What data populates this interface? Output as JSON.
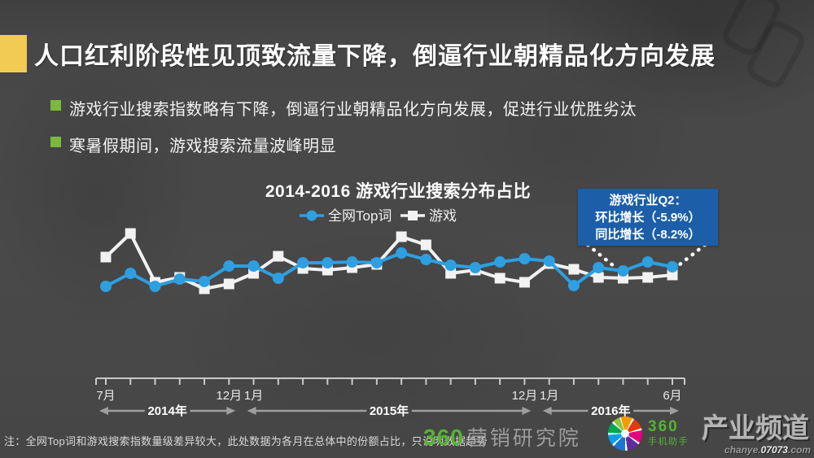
{
  "slide": {
    "title": "人口红利阶段性见顶致流量下降，倒逼行业朝精品化方向发展",
    "accent_color": "#F2CB52",
    "bullet_color": "#7CB83E",
    "bullets": [
      {
        "text": "游戏行业搜索指数略有下降，倒逼行业朝精品化方向发展，促进行业优胜劣汰"
      },
      {
        "text": "寒暑假期间，游戏搜索流量波峰明显"
      }
    ]
  },
  "chart_data": {
    "type": "line",
    "title": "2014-2016 游戏行业搜索分布占比",
    "grid": false,
    "legend_position": "top-center",
    "value_scale": "relative monthly share index (chart displays no y-axis)",
    "ylim": [
      0,
      130
    ],
    "x_months": [
      "2014-07",
      "2014-08",
      "2014-09",
      "2014-10",
      "2014-11",
      "2014-12",
      "2015-01",
      "2015-02",
      "2015-03",
      "2015-04",
      "2015-05",
      "2015-06",
      "2015-07",
      "2015-08",
      "2015-09",
      "2015-10",
      "2015-11",
      "2015-12",
      "2016-01",
      "2016-02",
      "2016-03",
      "2016-04",
      "2016-05",
      "2016-06"
    ],
    "series": [
      {
        "name": "全网Top词",
        "color": "#2E9FE0",
        "marker": "circle",
        "values": [
          48,
          64,
          48,
          57,
          54,
          73,
          73,
          58,
          77,
          77,
          78,
          77,
          89,
          81,
          74,
          71,
          78,
          82,
          79,
          49,
          71,
          67,
          78,
          72
        ]
      },
      {
        "name": "游戏",
        "color": "#F2F2F2",
        "marker": "square",
        "values": [
          84,
          113,
          53,
          59,
          45,
          51,
          64,
          85,
          70,
          68,
          71,
          75,
          109,
          99,
          64,
          68,
          58,
          53,
          76,
          69,
          59,
          58,
          59,
          62
        ]
      }
    ],
    "x_tick_labels": [
      {
        "text": "7月",
        "month": 0
      },
      {
        "text": "12月",
        "month": 5
      },
      {
        "text": "1月",
        "month": 6
      },
      {
        "text": "12月",
        "month": 17
      },
      {
        "text": "1月",
        "month": 18
      },
      {
        "text": "6月",
        "month": 23
      }
    ],
    "year_spans": [
      {
        "label": "2014年",
        "from_month": 0,
        "to_month": 5
      },
      {
        "label": "2015年",
        "from_month": 6,
        "to_month": 17
      },
      {
        "label": "2016年",
        "from_month": 18,
        "to_month": 23
      }
    ]
  },
  "callout": {
    "bg_color": "#1C5FA8",
    "lines": [
      "游戏行业Q2：",
      "环比增长（-5.9%）",
      "同比增长（-8.2%）"
    ],
    "points_to_months": [
      21,
      23
    ]
  },
  "footer": {
    "note": "注：全网Top词和游戏搜索指数量级差异较大，此处数据为各月在总体中的份额占比，只说明数据趋势",
    "logo_360_research": {
      "brand": "360",
      "suffix": "营销研究院"
    },
    "logo_360_assistant": {
      "brand": "360",
      "suffix": "手机助手"
    },
    "watermark": {
      "title": "产业频道",
      "url_prefix": "chanye.",
      "url_number": "07073",
      "url_suffix": ".com"
    }
  }
}
